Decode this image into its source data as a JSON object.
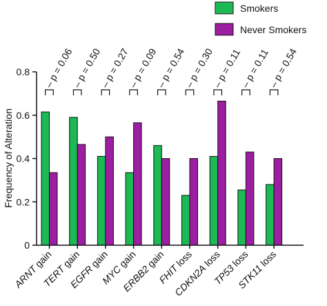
{
  "chart_data": {
    "type": "bar",
    "title": "",
    "xlabel": "",
    "ylabel": "Frequency of Alteration",
    "ylim": [
      0,
      0.8
    ],
    "yticks": [
      "0",
      "0.2",
      "0.4",
      "0.6",
      "0.8"
    ],
    "ytick_values": [
      0,
      0.2,
      0.4,
      0.6,
      0.8
    ],
    "grid": false,
    "legend_position": "top-right",
    "categories": [
      {
        "gene": "ARNT",
        "suffix": " gain"
      },
      {
        "gene": "TERT",
        "suffix": " gain"
      },
      {
        "gene": "EGFR",
        "suffix": " gain"
      },
      {
        "gene": "MYC",
        "suffix": " gain"
      },
      {
        "gene": "ERBB2",
        "suffix": " gain"
      },
      {
        "gene": "FHIT",
        "suffix": " loss"
      },
      {
        "gene": "CDKN2A",
        "suffix": " loss"
      },
      {
        "gene": "TP53",
        "suffix": " loss"
      },
      {
        "gene": "STK11",
        "suffix": " loss"
      }
    ],
    "series": [
      {
        "name": "Smokers",
        "color": "#1db954",
        "values": [
          0.615,
          0.59,
          0.41,
          0.335,
          0.46,
          0.23,
          0.41,
          0.255,
          0.28
        ]
      },
      {
        "name": "Never Smokers",
        "color": "#9b1fa0",
        "values": [
          0.335,
          0.465,
          0.5,
          0.565,
          0.4,
          0.4,
          0.665,
          0.43,
          0.4
        ]
      }
    ],
    "annotations": [
      "p = 0.06",
      "p = 0.50",
      "p = 0.27",
      "p = 0.09",
      "p = 0.54",
      "p = 0.30",
      "p = 0.11",
      "p = 0.11",
      "p = 0.54"
    ]
  }
}
